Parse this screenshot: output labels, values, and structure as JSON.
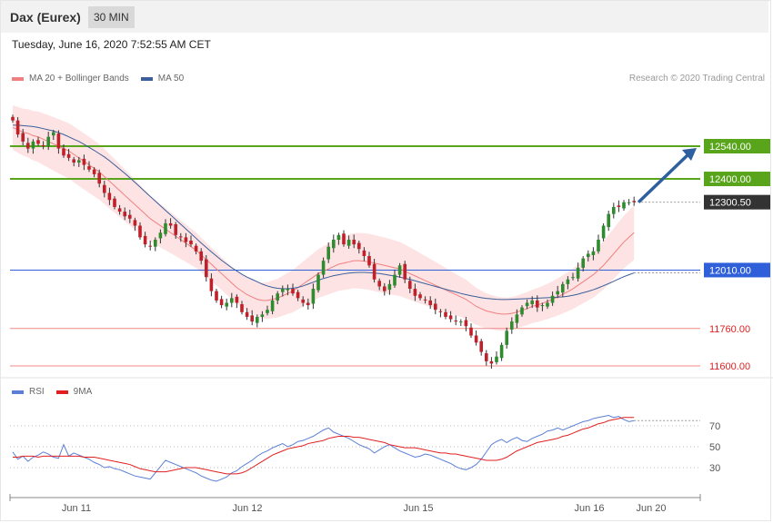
{
  "header": {
    "instrument": "Dax (Eurex)",
    "timeframe": "30 MIN"
  },
  "datetime": "Tuesday, June 16, 2020 7:52:55 AM CET",
  "legend_main": [
    {
      "label": "MA 20 + Bollinger Bands",
      "color": "#f08080"
    },
    {
      "label": "MA 50",
      "color": "#3a5f9a"
    }
  ],
  "credit": "Research © 2020 Trading Central",
  "legend_rsi": [
    {
      "label": "RSI",
      "color": "#5b7fd6"
    },
    {
      "label": "9MA",
      "color": "#e02020"
    }
  ],
  "colors": {
    "resistance": "#58a51c",
    "support": "#f08a8a",
    "pivot": "#2f5fd9",
    "current": "#333333",
    "bull": "#2e8b2e",
    "bear": "#c0202a",
    "band_fill": "#fde3e3",
    "arrow": "#2e5f9e"
  },
  "chart_data": [
    {
      "type": "candlestick",
      "title": "Dax (Eurex)",
      "ylim": [
        11590,
        12830
      ],
      "x_ticks": [
        "Jun 11",
        "Jun 12",
        "Jun 15",
        "Jun 16",
        "Jun 20"
      ],
      "levels": [
        {
          "label": "12540.00",
          "value": 12540,
          "kind": "resistance"
        },
        {
          "label": "12400.00",
          "value": 12400,
          "kind": "resistance"
        },
        {
          "label": "12300.50",
          "value": 12300.5,
          "kind": "current"
        },
        {
          "label": "12010.00",
          "value": 12010,
          "kind": "pivot"
        },
        {
          "label": "11760.00",
          "value": 11760,
          "kind": "support"
        },
        {
          "label": "11600.00",
          "value": 11600,
          "kind": "support"
        }
      ],
      "close": [
        12650,
        12590,
        12560,
        12530,
        12560,
        12550,
        12540,
        12580,
        12600,
        12530,
        12500,
        12490,
        12470,
        12480,
        12460,
        12440,
        12420,
        12380,
        12340,
        12310,
        12280,
        12260,
        12240,
        12230,
        12200,
        12150,
        12120,
        12110,
        12140,
        12170,
        12210,
        12200,
        12160,
        12150,
        12130,
        12120,
        12090,
        12050,
        11980,
        11920,
        11880,
        11860,
        11870,
        11890,
        11870,
        11830,
        11810,
        11790,
        11810,
        11820,
        11840,
        11880,
        11910,
        11930,
        11930,
        11910,
        11890,
        11870,
        11860,
        11930,
        11990,
        12050,
        12110,
        12140,
        12160,
        12120,
        12140,
        12120,
        12100,
        12070,
        12030,
        11970,
        11940,
        11920,
        11950,
        11990,
        12030,
        11970,
        11930,
        11900,
        11890,
        11880,
        11860,
        11840,
        11830,
        11810,
        11800,
        11790,
        11790,
        11770,
        11730,
        11700,
        11660,
        11620,
        11610,
        11640,
        11690,
        11750,
        11790,
        11820,
        11850,
        11870,
        11880,
        11850,
        11860,
        11870,
        11900,
        11920,
        11950,
        11970,
        11980,
        12020,
        12060,
        12080,
        12090,
        12140,
        12200,
        12250,
        12280,
        12280,
        12300,
        12300,
        12300.5
      ],
      "ma20": [
        12620,
        12610,
        12600,
        12595,
        12585,
        12580,
        12570,
        12560,
        12550,
        12540,
        12530,
        12520,
        12505,
        12490,
        12475,
        12460,
        12445,
        12430,
        12410,
        12390,
        12370,
        12350,
        12330,
        12310,
        12290,
        12270,
        12250,
        12230,
        12215,
        12200,
        12185,
        12170,
        12155,
        12140,
        12125,
        12110,
        12095,
        12075,
        12055,
        12035,
        12015,
        11995,
        11975,
        11955,
        11935,
        11920,
        11905,
        11895,
        11885,
        11880,
        11880,
        11885,
        11890,
        11900,
        11910,
        11920,
        11935,
        11950,
        11965,
        11980,
        11995,
        12005,
        12015,
        12025,
        12035,
        12040,
        12045,
        12050,
        12050,
        12048,
        12045,
        12040,
        12035,
        12030,
        12025,
        12020,
        12015,
        12005,
        11995,
        11985,
        11975,
        11965,
        11955,
        11945,
        11935,
        11925,
        11915,
        11905,
        11895,
        11885,
        11870,
        11855,
        11845,
        11835,
        11830,
        11825,
        11822,
        11822,
        11825,
        11830,
        11838,
        11845,
        11855,
        11860,
        11868,
        11876,
        11885,
        11895,
        11906,
        11918,
        11930,
        11945,
        11960,
        11975,
        11990,
        12010,
        12030,
        12055,
        12080,
        12105,
        12130,
        12150,
        12170
      ],
      "ma50": [
        12630,
        12630,
        12628,
        12626,
        12624,
        12620,
        12615,
        12610,
        12605,
        12598,
        12590,
        12580,
        12570,
        12560,
        12548,
        12535,
        12522,
        12508,
        12494,
        12478,
        12460,
        12442,
        12424,
        12405,
        12385,
        12365,
        12345,
        12325,
        12305,
        12285,
        12265,
        12246,
        12226,
        12206,
        12186,
        12166,
        12146,
        12126,
        12107,
        12088,
        12070,
        12052,
        12036,
        12020,
        12006,
        11992,
        11980,
        11970,
        11960,
        11950,
        11942,
        11936,
        11932,
        11930,
        11930,
        11932,
        11936,
        11942,
        11950,
        11958,
        11966,
        11974,
        11980,
        11986,
        11990,
        11994,
        11997,
        11999,
        12000,
        12000,
        11999,
        11997,
        11995,
        11992,
        11988,
        11984,
        11980,
        11975,
        11970,
        11964,
        11958,
        11952,
        11946,
        11940,
        11934,
        11928,
        11922,
        11916,
        11910,
        11905,
        11900,
        11896,
        11892,
        11889,
        11887,
        11885,
        11884,
        11884,
        11885,
        11886,
        11887,
        11888,
        11889,
        11890,
        11891,
        11892,
        11893,
        11894,
        11895,
        11898,
        11902,
        11907,
        11913,
        11919,
        11926,
        11934,
        11943,
        11952,
        11962,
        11972,
        11982,
        11990,
        11998
      ]
    },
    {
      "type": "line",
      "title": "RSI",
      "ylim": [
        10,
        90
      ],
      "y_ticks": [
        70,
        50,
        30
      ],
      "series": [
        {
          "name": "RSI",
          "values": [
            45,
            38,
            41,
            36,
            40,
            42,
            45,
            43,
            40,
            39,
            52,
            41,
            44,
            42,
            40,
            38,
            35,
            33,
            30,
            31,
            29,
            28,
            26,
            24,
            22,
            21,
            20,
            19,
            25,
            31,
            37,
            35,
            33,
            31,
            29,
            27,
            25,
            22,
            20,
            18,
            17,
            19,
            21,
            25,
            27,
            31,
            34,
            37,
            41,
            44,
            46,
            49,
            51,
            53,
            50,
            52,
            55,
            56,
            58,
            60,
            63,
            66,
            68,
            64,
            62,
            60,
            58,
            55,
            52,
            50,
            48,
            44,
            47,
            50,
            52,
            49,
            46,
            44,
            42,
            40,
            41,
            43,
            42,
            40,
            38,
            36,
            34,
            31,
            29,
            28,
            30,
            33,
            38,
            45,
            52,
            55,
            57,
            54,
            57,
            59,
            56,
            55,
            58,
            60,
            62,
            65,
            66,
            68,
            66,
            68,
            70,
            72,
            74,
            75,
            77,
            78,
            79,
            80,
            78,
            79,
            76,
            74,
            75
          ]
        },
        {
          "name": "9MA",
          "values": [
            40,
            40,
            41,
            41,
            41,
            40,
            41,
            41,
            41,
            41,
            41,
            41,
            41,
            41,
            40,
            40,
            40,
            39,
            38,
            37,
            36,
            35,
            34,
            33,
            31,
            29,
            28,
            27,
            26,
            26,
            26,
            27,
            28,
            29,
            30,
            30,
            30,
            29,
            28,
            27,
            26,
            25,
            24,
            24,
            24,
            25,
            27,
            30,
            33,
            36,
            39,
            42,
            44,
            46,
            48,
            49,
            50,
            51,
            53,
            54,
            55,
            56,
            58,
            59,
            60,
            60,
            60,
            59,
            59,
            58,
            57,
            56,
            55,
            54,
            52,
            51,
            50,
            49,
            49,
            49,
            48,
            47,
            46,
            45,
            44,
            44,
            43,
            43,
            42,
            41,
            40,
            39,
            38,
            37,
            37,
            37,
            38,
            40,
            43,
            46,
            48,
            50,
            52,
            54,
            55,
            56,
            57,
            58,
            60,
            61,
            63,
            65,
            67,
            68,
            70,
            72,
            73,
            75,
            76,
            77,
            78,
            78,
            78
          ]
        }
      ]
    }
  ]
}
